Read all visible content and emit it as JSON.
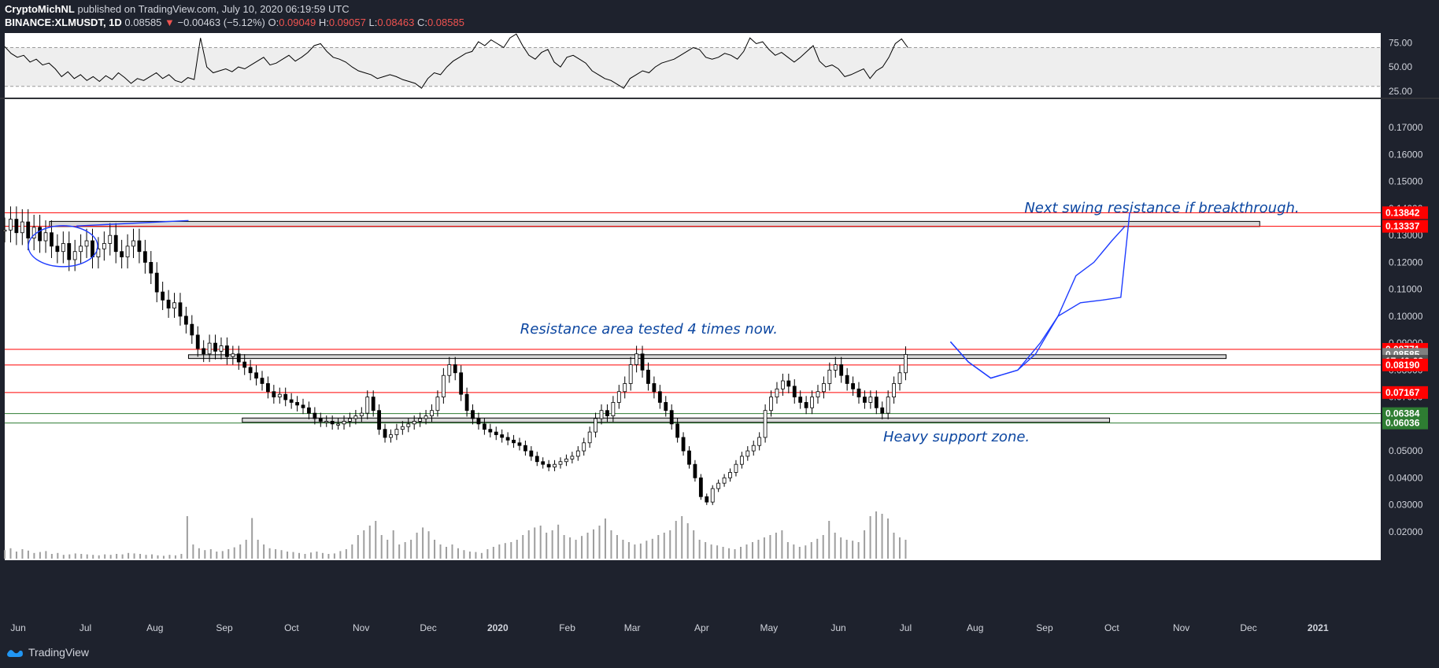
{
  "header": {
    "author": "CryptoMichNL",
    "published": "published on TradingView.com, July 10, 2020 06:19:59 UTC",
    "symbol": "BINANCE:XLMUSDT, 1D",
    "last": "0.08585",
    "change": "−0.00463 (−5.12%)",
    "o_label": "O:",
    "o": "0.09049",
    "h_label": "H:",
    "h": "0.09057",
    "l_label": "L:",
    "l": "0.08463",
    "c_label": "C:",
    "c": "0.08585"
  },
  "footer": {
    "brand": "TradingView"
  },
  "colors": {
    "background": "#ffffff",
    "frame": "#1e222d",
    "axis_text": "#d1d4dc",
    "candle": "#000000",
    "resistance": "#ff0000",
    "support": "#2e7d32",
    "annotation": "#0d47a1",
    "projection": "#1e3cff",
    "zone_fill": "#d9d9d9",
    "rsi_band": "#eeeeee",
    "volume": "#9e9e9e"
  },
  "chart_data": [
    {
      "type": "line",
      "panel": "rsi",
      "ylim": [
        20,
        85
      ],
      "y_ticks": [
        "75.00",
        "50.00",
        "25.00"
      ],
      "y_tick_values": [
        75,
        50,
        25
      ],
      "band": [
        30,
        70
      ],
      "values": [
        71,
        64,
        60,
        62,
        55,
        58,
        52,
        54,
        48,
        40,
        45,
        38,
        42,
        36,
        40,
        35,
        41,
        37,
        44,
        39,
        33,
        38,
        36,
        40,
        44,
        38,
        42,
        36,
        34,
        39,
        37,
        80,
        50,
        44,
        46,
        48,
        45,
        50,
        48,
        52,
        56,
        60,
        52,
        54,
        58,
        62,
        56,
        60,
        65,
        72,
        74,
        66,
        60,
        58,
        55,
        50,
        46,
        44,
        42,
        38,
        40,
        42,
        40,
        37,
        35,
        33,
        28,
        38,
        44,
        42,
        50,
        56,
        60,
        64,
        66,
        76,
        72,
        78,
        74,
        70,
        80,
        84,
        72,
        62,
        58,
        65,
        68,
        55,
        50,
        60,
        62,
        58,
        54,
        46,
        42,
        38,
        36,
        32,
        28,
        38,
        42,
        46,
        44,
        50,
        54,
        56,
        58,
        62,
        66,
        70,
        68,
        60,
        58,
        60,
        64,
        62,
        58,
        66,
        80,
        74,
        76,
        68,
        62,
        65,
        60,
        55,
        60,
        66,
        72,
        56,
        50,
        52,
        48,
        40,
        42,
        45,
        48,
        38,
        46,
        50,
        60,
        74,
        79,
        70
      ]
    },
    {
      "type": "candlestick",
      "panel": "price",
      "ylim": [
        0.01,
        0.18
      ],
      "y_ticks": [
        "0.17000",
        "0.16000",
        "0.15000",
        "0.14000",
        "0.13000",
        "0.12000",
        "0.11000",
        "0.10000",
        "0.09000",
        "0.08000",
        "0.07000",
        "0.06000",
        "0.05000",
        "0.04000",
        "0.03000",
        "0.02000"
      ],
      "y_tick_values": [
        0.17,
        0.16,
        0.15,
        0.14,
        0.13,
        0.12,
        0.11,
        0.1,
        0.09,
        0.08,
        0.07,
        0.06,
        0.05,
        0.04,
        0.03,
        0.02
      ],
      "x_labels": [
        "Jun",
        "Jul",
        "Aug",
        "Sep",
        "Oct",
        "Nov",
        "Dec",
        "2020",
        "Feb",
        "Mar",
        "Apr",
        "May",
        "Jun",
        "Jul",
        "Aug",
        "Sep",
        "Oct",
        "Nov",
        "Dec",
        "2021"
      ],
      "x_label_index": [
        6,
        36,
        67,
        98,
        128,
        159,
        189,
        220,
        251,
        280,
        311,
        341,
        372,
        402,
        433,
        464,
        494,
        525,
        555,
        586
      ],
      "x_range": [
        0,
        614
      ],
      "close": [
        0.132,
        0.136,
        0.131,
        0.135,
        0.129,
        0.133,
        0.128,
        0.131,
        0.126,
        0.124,
        0.127,
        0.121,
        0.124,
        0.126,
        0.128,
        0.122,
        0.125,
        0.127,
        0.13,
        0.124,
        0.122,
        0.126,
        0.128,
        0.124,
        0.12,
        0.116,
        0.109,
        0.106,
        0.103,
        0.105,
        0.1,
        0.097,
        0.093,
        0.088,
        0.086,
        0.09,
        0.087,
        0.089,
        0.085,
        0.086,
        0.083,
        0.081,
        0.079,
        0.077,
        0.075,
        0.072,
        0.07,
        0.071,
        0.069,
        0.068,
        0.067,
        0.066,
        0.064,
        0.062,
        0.061,
        0.061,
        0.06,
        0.06,
        0.061,
        0.062,
        0.063,
        0.064,
        0.07,
        0.065,
        0.058,
        0.055,
        0.056,
        0.058,
        0.059,
        0.06,
        0.061,
        0.062,
        0.063,
        0.065,
        0.07,
        0.078,
        0.082,
        0.079,
        0.071,
        0.065,
        0.062,
        0.06,
        0.058,
        0.057,
        0.056,
        0.055,
        0.054,
        0.053,
        0.052,
        0.05,
        0.048,
        0.046,
        0.045,
        0.044,
        0.045,
        0.046,
        0.047,
        0.048,
        0.05,
        0.053,
        0.057,
        0.062,
        0.065,
        0.063,
        0.068,
        0.072,
        0.075,
        0.082,
        0.086,
        0.08,
        0.075,
        0.072,
        0.068,
        0.065,
        0.06,
        0.055,
        0.05,
        0.045,
        0.04,
        0.033,
        0.031,
        0.036,
        0.038,
        0.04,
        0.042,
        0.045,
        0.048,
        0.05,
        0.052,
        0.055,
        0.065,
        0.07,
        0.073,
        0.076,
        0.074,
        0.07,
        0.068,
        0.066,
        0.07,
        0.072,
        0.075,
        0.08,
        0.082,
        0.078,
        0.075,
        0.073,
        0.07,
        0.068,
        0.07,
        0.066,
        0.064,
        0.07,
        0.075,
        0.079,
        0.0858
      ],
      "annotations": [
        {
          "text": "Next swing resistance if breakthrough.",
          "x": 455,
          "y": 0.1385
        },
        {
          "text": "Resistance area tested 4 times now.",
          "x": 230,
          "y": 0.0935
        },
        {
          "text": "Heavy support zone.",
          "x": 392,
          "y": 0.0535
        }
      ],
      "zones": [
        {
          "kind": "resistance",
          "y1": 0.1333,
          "y2": 0.1352,
          "x1": 20,
          "x2": 560
        },
        {
          "kind": "resistance",
          "y1": 0.0843,
          "y2": 0.0857,
          "x1": 82,
          "x2": 545
        },
        {
          "kind": "support",
          "y1": 0.0606,
          "y2": 0.0622,
          "x1": 106,
          "x2": 493
        }
      ],
      "levels": [
        {
          "label": "0.13842",
          "value": 0.13842,
          "color": "#ff0000",
          "line": true
        },
        {
          "label": "0.13337",
          "value": 0.13337,
          "color": "#ff0000",
          "line": true
        },
        {
          "label": "0.08771",
          "value": 0.08771,
          "color": "#ff0000",
          "line": true
        },
        {
          "label": "0.08585",
          "value": 0.08585,
          "color": "#808080",
          "line": false
        },
        {
          "label": "17:40:02",
          "value": 0.0833,
          "color": "#555555",
          "line": false
        },
        {
          "label": "0.08190",
          "value": 0.0819,
          "color": "#ff0000",
          "line": true
        },
        {
          "label": "0.07167",
          "value": 0.07167,
          "color": "#ff0000",
          "line": true
        },
        {
          "label": "0.06384",
          "value": 0.06384,
          "color": "#2e7d32",
          "line": true
        },
        {
          "label": "0.06036",
          "value": 0.06036,
          "color": "#2e7d32",
          "line": true
        }
      ],
      "projections": [
        [
          [
            422,
            0.0905
          ],
          [
            430,
            0.083
          ],
          [
            440,
            0.077
          ],
          [
            452,
            0.08
          ],
          [
            460,
            0.086
          ],
          [
            470,
            0.1
          ],
          [
            478,
            0.115
          ],
          [
            486,
            0.12
          ],
          [
            494,
            0.128
          ],
          [
            500,
            0.1335
          ]
        ],
        [
          [
            422,
            0.0905
          ],
          [
            430,
            0.083
          ],
          [
            440,
            0.077
          ],
          [
            452,
            0.08
          ],
          [
            462,
            0.09
          ],
          [
            470,
            0.1
          ],
          [
            480,
            0.105
          ],
          [
            490,
            0.106
          ],
          [
            498,
            0.107
          ],
          [
            502,
            0.1385
          ]
        ]
      ]
    },
    {
      "type": "bar",
      "panel": "volume",
      "values": [
        0.18,
        0.22,
        0.15,
        0.2,
        0.17,
        0.12,
        0.14,
        0.16,
        0.1,
        0.12,
        0.08,
        0.09,
        0.11,
        0.1,
        0.09,
        0.08,
        0.07,
        0.09,
        0.08,
        0.1,
        0.09,
        0.12,
        0.11,
        0.1,
        0.08,
        0.09,
        0.07,
        0.06,
        0.08,
        0.07,
        0.1,
        0.9,
        0.3,
        0.22,
        0.18,
        0.2,
        0.15,
        0.16,
        0.2,
        0.24,
        0.3,
        0.4,
        0.86,
        0.4,
        0.3,
        0.22,
        0.2,
        0.18,
        0.15,
        0.14,
        0.12,
        0.1,
        0.13,
        0.15,
        0.12,
        0.1,
        0.11,
        0.16,
        0.2,
        0.3,
        0.5,
        0.6,
        0.7,
        0.8,
        0.5,
        0.4,
        0.6,
        0.3,
        0.35,
        0.4,
        0.55,
        0.66,
        0.58,
        0.4,
        0.3,
        0.25,
        0.3,
        0.22,
        0.18,
        0.15,
        0.14,
        0.12,
        0.2,
        0.25,
        0.3,
        0.33,
        0.35,
        0.4,
        0.5,
        0.6,
        0.66,
        0.7,
        0.55,
        0.6,
        0.72,
        0.5,
        0.45,
        0.4,
        0.48,
        0.55,
        0.62,
        0.7,
        0.85,
        0.6,
        0.5,
        0.4,
        0.35,
        0.3,
        0.32,
        0.38,
        0.42,
        0.5,
        0.55,
        0.6,
        0.8,
        0.9,
        0.75,
        0.6,
        0.4,
        0.35,
        0.3,
        0.28,
        0.25,
        0.22,
        0.2,
        0.25,
        0.3,
        0.35,
        0.4,
        0.45,
        0.5,
        0.55,
        0.6,
        0.35,
        0.3,
        0.25,
        0.28,
        0.35,
        0.42,
        0.5,
        0.8,
        0.55,
        0.45,
        0.4,
        0.38,
        0.35,
        0.6,
        0.9,
        1.0,
        0.95,
        0.85,
        0.55,
        0.45,
        0.4
      ]
    }
  ]
}
